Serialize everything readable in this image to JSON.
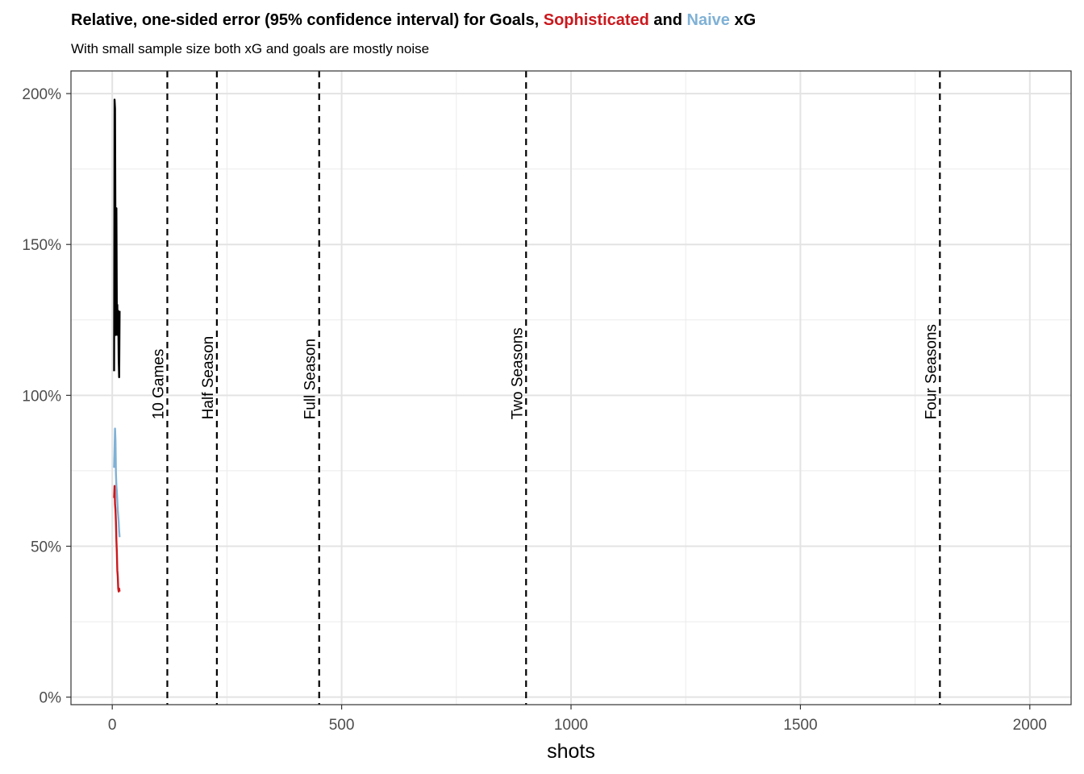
{
  "chart_data": {
    "type": "line",
    "title_parts": [
      {
        "text": "Relative, one-sided error (95% confidence interval) for Goals, ",
        "color": "#000000"
      },
      {
        "text": "Sophisticated",
        "color": "#CB181D"
      },
      {
        "text": " and ",
        "color": "#000000"
      },
      {
        "text": "Naive",
        "color": "#7FB1D6"
      },
      {
        "text": " xG",
        "color": "#000000"
      }
    ],
    "subtitle": "With small sample size both xG and goals are mostly noise",
    "xlabel": "shots",
    "ylabel": "",
    "xlim": [
      -90,
      2090
    ],
    "ylim": [
      -2.5,
      207.5
    ],
    "x_ticks": [
      0,
      500,
      1000,
      1500,
      2000
    ],
    "x_tick_labels": [
      "0",
      "500",
      "1000",
      "1500",
      "2000"
    ],
    "x_minor_ticks": [
      250,
      750,
      1250,
      1750
    ],
    "y_ticks": [
      0,
      50,
      100,
      150,
      200
    ],
    "y_tick_labels": [
      "0%",
      "50%",
      "100%",
      "150%",
      "200%"
    ],
    "y_minor_ticks": [
      25,
      75,
      125,
      175
    ],
    "grid": true,
    "series": [
      {
        "color": "#000000",
        "x": [
          4,
          5,
          6,
          7,
          8,
          9,
          10,
          11,
          12,
          13,
          14,
          15,
          16
        ],
        "y": [
          108,
          198,
          195,
          150,
          120,
          162,
          125,
          130,
          120,
          128,
          112,
          106,
          128
        ]
      },
      {
        "color": "#7FB1D6",
        "x": [
          4,
          5,
          6,
          7,
          8,
          9,
          10,
          11,
          12,
          13,
          14,
          15,
          16
        ],
        "y": [
          76,
          82,
          89,
          85,
          74,
          70,
          68,
          65,
          62,
          60,
          58,
          55,
          53
        ]
      },
      {
        "color": "#CB181D",
        "x": [
          4,
          5,
          6,
          7,
          8,
          9,
          10,
          11,
          12,
          13,
          14,
          15,
          16
        ],
        "y": [
          66,
          70,
          64,
          62,
          58,
          52,
          48,
          42,
          40,
          36,
          35,
          36,
          35
        ]
      }
    ],
    "vlines": [
      {
        "x": 120,
        "label": "10 Games"
      },
      {
        "x": 228,
        "label": "Half Season"
      },
      {
        "x": 451,
        "label": "Full Season"
      },
      {
        "x": 902,
        "label": "Two Seasons"
      },
      {
        "x": 1804,
        "label": "Four Seasons"
      }
    ],
    "vline_label_y": 92
  }
}
